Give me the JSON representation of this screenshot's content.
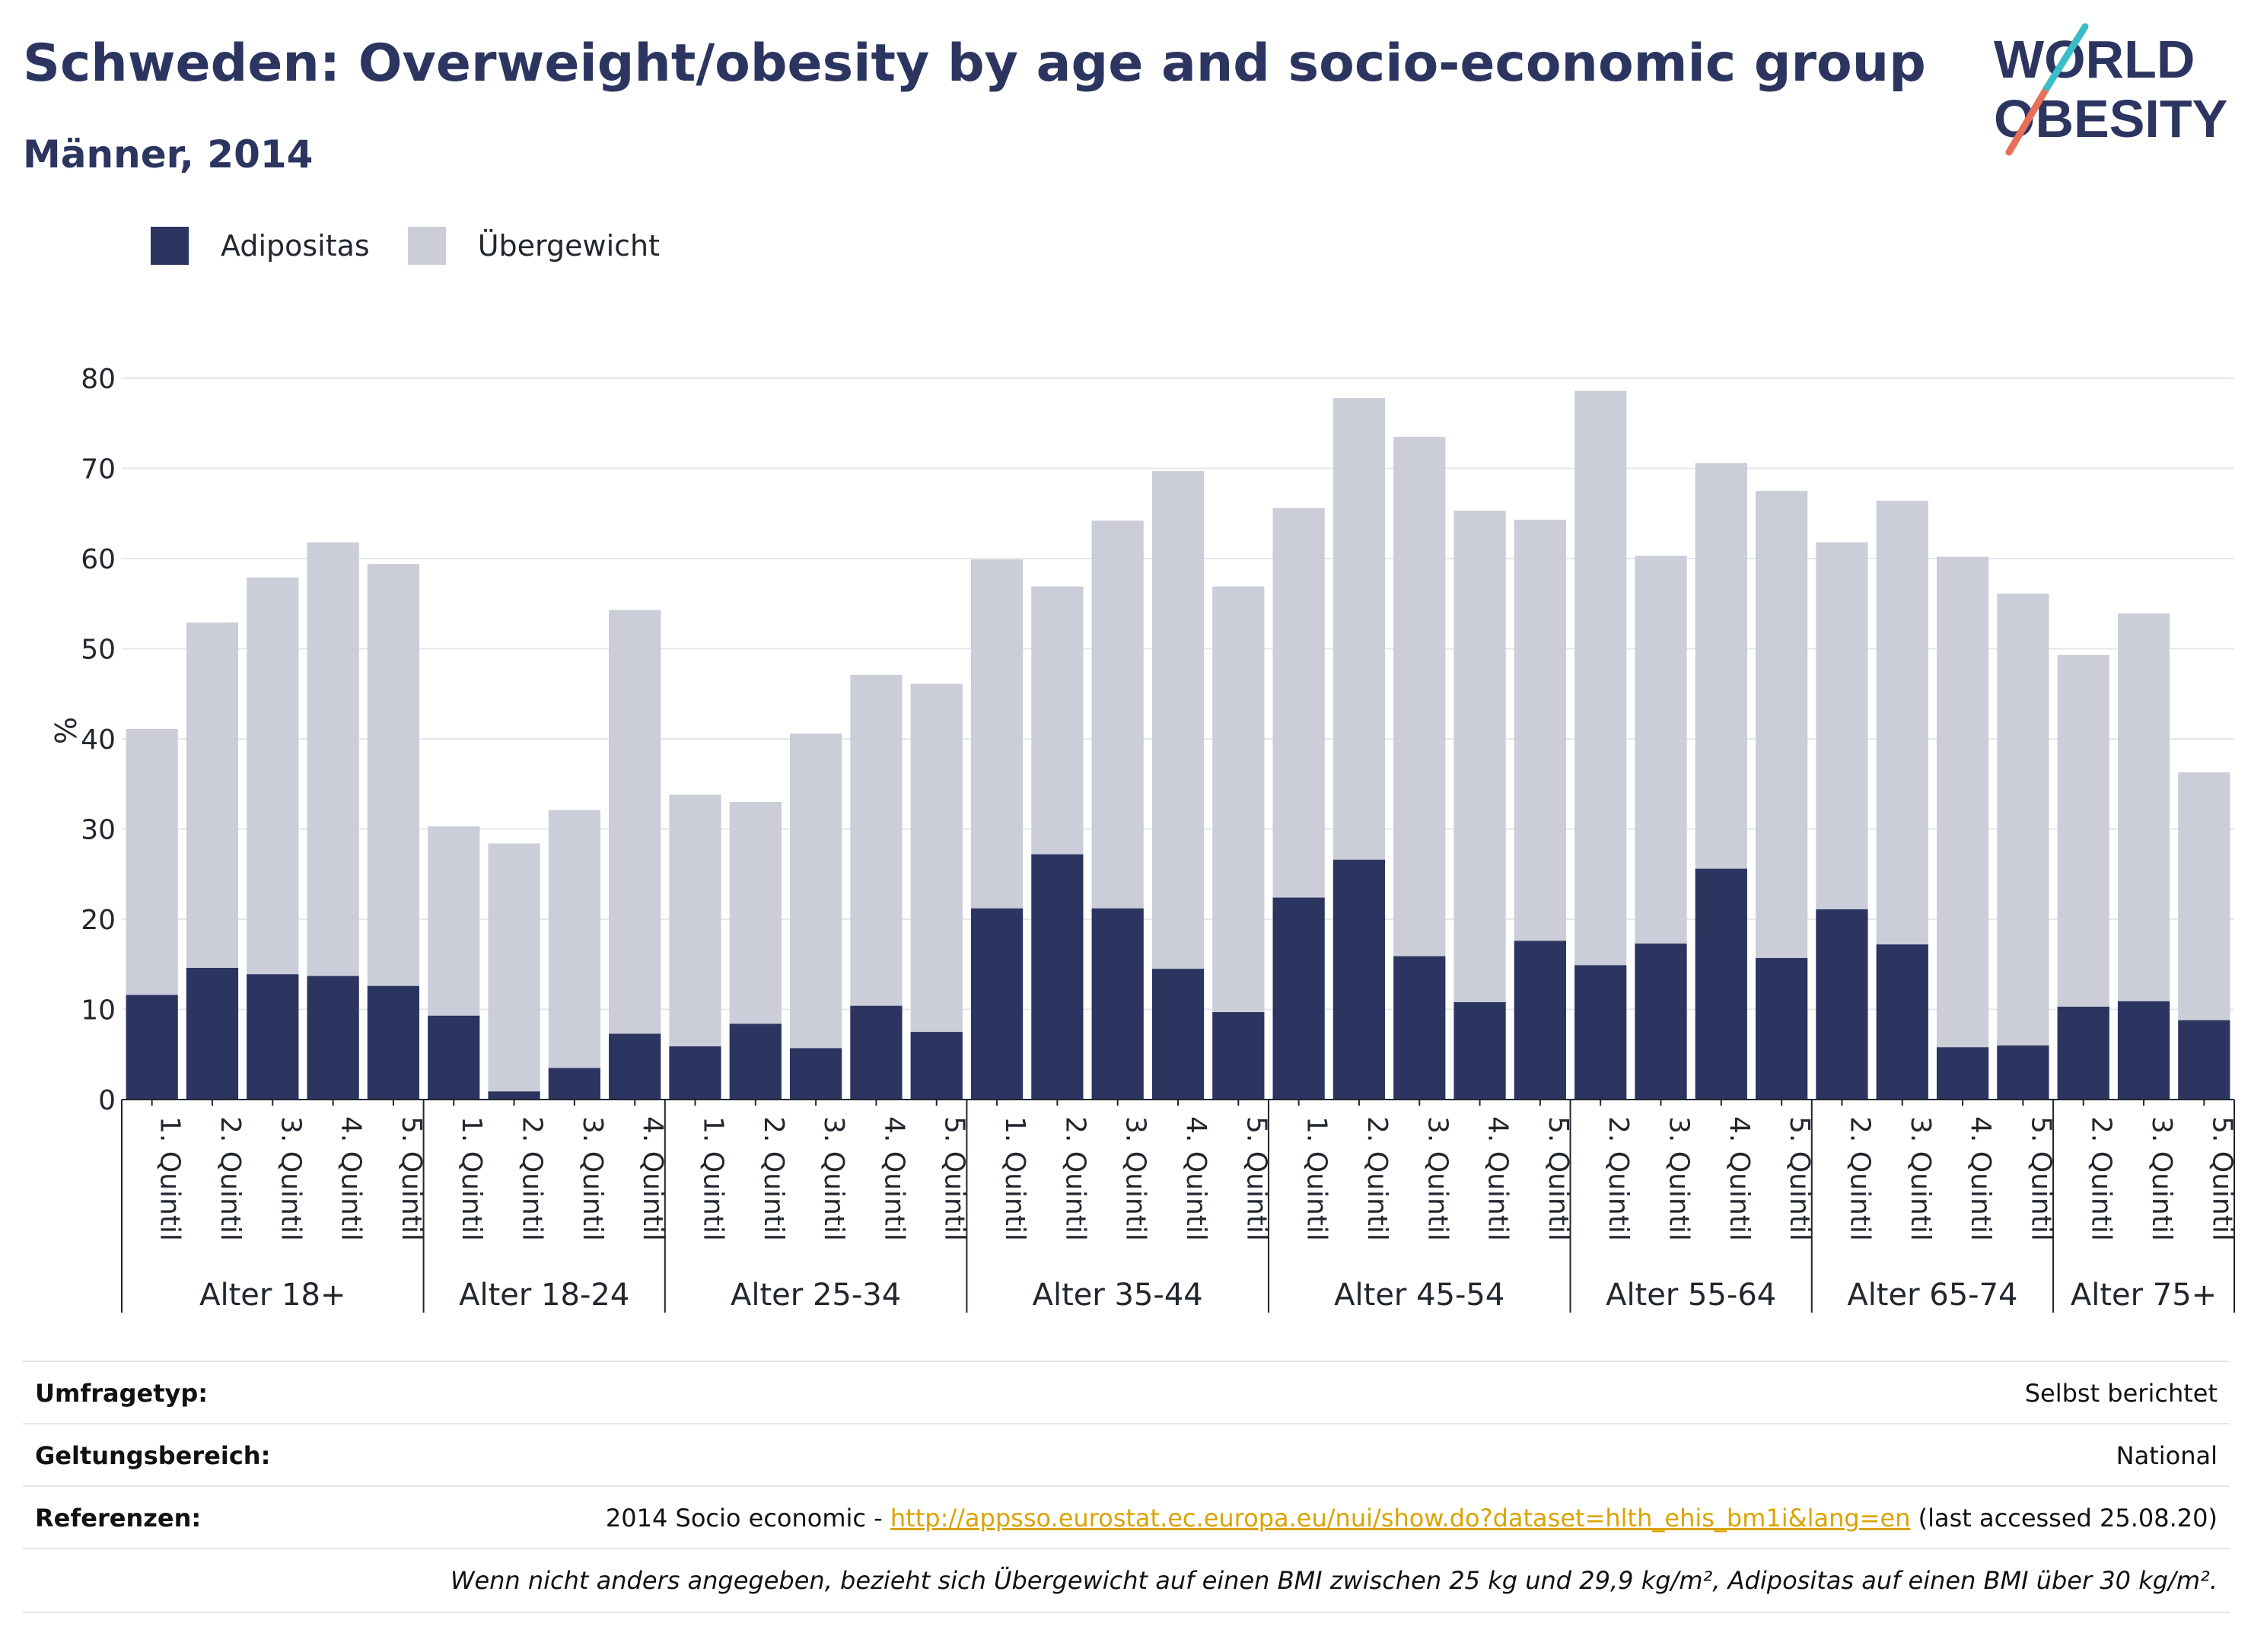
{
  "header": {
    "title": "Schweden: Overweight/obesity by age and socio-economic group",
    "subtitle": "Männer, 2014"
  },
  "logo": {
    "line1": "WORLD",
    "line2": "OBESITY"
  },
  "legend": [
    {
      "label": "Adipositas",
      "color": "#2b3560"
    },
    {
      "label": "Übergewicht",
      "color": "#cbcdd9"
    }
  ],
  "chart_data": {
    "type": "bar",
    "stacked": false,
    "overlay": true,
    "ylabel": "%",
    "ylim": [
      0,
      80
    ],
    "yticks": [
      0,
      10,
      20,
      30,
      40,
      50,
      60,
      70,
      80
    ],
    "grid": true,
    "legend_position": "top-left",
    "groups": [
      {
        "label": "Alter 18+",
        "categories": [
          "1. Quintil",
          "2. Quintil",
          "3. Quintil",
          "4. Quintil",
          "5. Quintil"
        ]
      },
      {
        "label": "Alter 18-24",
        "categories": [
          "1. Quintil",
          "2. Quintil",
          "3. Quintil",
          "4. Quintil"
        ]
      },
      {
        "label": "Alter 25-34",
        "categories": [
          "1. Quintil",
          "2. Quintil",
          "3. Quintil",
          "4. Quintil",
          "5. Quintil"
        ]
      },
      {
        "label": "Alter 35-44",
        "categories": [
          "1. Quintil",
          "2. Quintil",
          "3. Quintil",
          "4. Quintil",
          "5. Quintil"
        ]
      },
      {
        "label": "Alter 45-54",
        "categories": [
          "1. Quintil",
          "2. Quintil",
          "3. Quintil",
          "4. Quintil",
          "5. Quintil"
        ]
      },
      {
        "label": "Alter 55-64",
        "categories": [
          "2. Quintil",
          "3. Quintil",
          "4. Quintil",
          "5. Quintil"
        ]
      },
      {
        "label": "Alter 65-74",
        "categories": [
          "2. Quintil",
          "3. Quintil",
          "4. Quintil",
          "5. Quintil"
        ]
      },
      {
        "label": "Alter 75+",
        "categories": [
          "2. Quintil",
          "3. Quintil",
          "5. Quintil"
        ]
      }
    ],
    "series": [
      {
        "name": "Übergewicht",
        "color": "#cbcdd9",
        "values": [
          41.1,
          52.9,
          57.9,
          61.8,
          59.4,
          30.3,
          28.4,
          32.1,
          54.3,
          33.8,
          33.0,
          40.6,
          47.1,
          46.1,
          59.9,
          56.9,
          64.2,
          69.7,
          56.9,
          65.6,
          77.8,
          73.5,
          65.3,
          64.3,
          78.6,
          60.3,
          70.6,
          67.5,
          61.8,
          66.4,
          60.2,
          56.1,
          49.3,
          53.9,
          36.3
        ]
      },
      {
        "name": "Adipositas",
        "color": "#2b3560",
        "values": [
          11.6,
          14.6,
          13.9,
          13.7,
          12.6,
          9.3,
          0.9,
          3.5,
          7.3,
          5.9,
          8.4,
          5.7,
          10.4,
          7.5,
          21.2,
          27.2,
          21.2,
          14.5,
          9.7,
          22.4,
          26.6,
          15.9,
          10.8,
          17.6,
          14.9,
          17.3,
          25.6,
          15.7,
          21.1,
          17.2,
          5.8,
          6.0,
          10.3,
          10.9,
          8.8
        ]
      }
    ]
  },
  "meta": {
    "survey_type": {
      "label": "Umfragetyp:",
      "value": "Selbst berichtet"
    },
    "coverage": {
      "label": "Geltungsbereich:",
      "value": "National"
    },
    "references": {
      "label": "Referenzen:",
      "prefix": "2014 Socio economic - ",
      "link": "http://appsso.eurostat.ec.europa.eu/nui/show.do?dataset=hlth_ehis_bm1i&lang=en",
      "suffix": " (last accessed 25.08.20)"
    },
    "note": "Wenn nicht anders angegeben, bezieht sich Übergewicht auf einen BMI zwischen 25 kg und 29,9 kg/m², Adipositas auf einen BMI über 30 kg/m²."
  }
}
